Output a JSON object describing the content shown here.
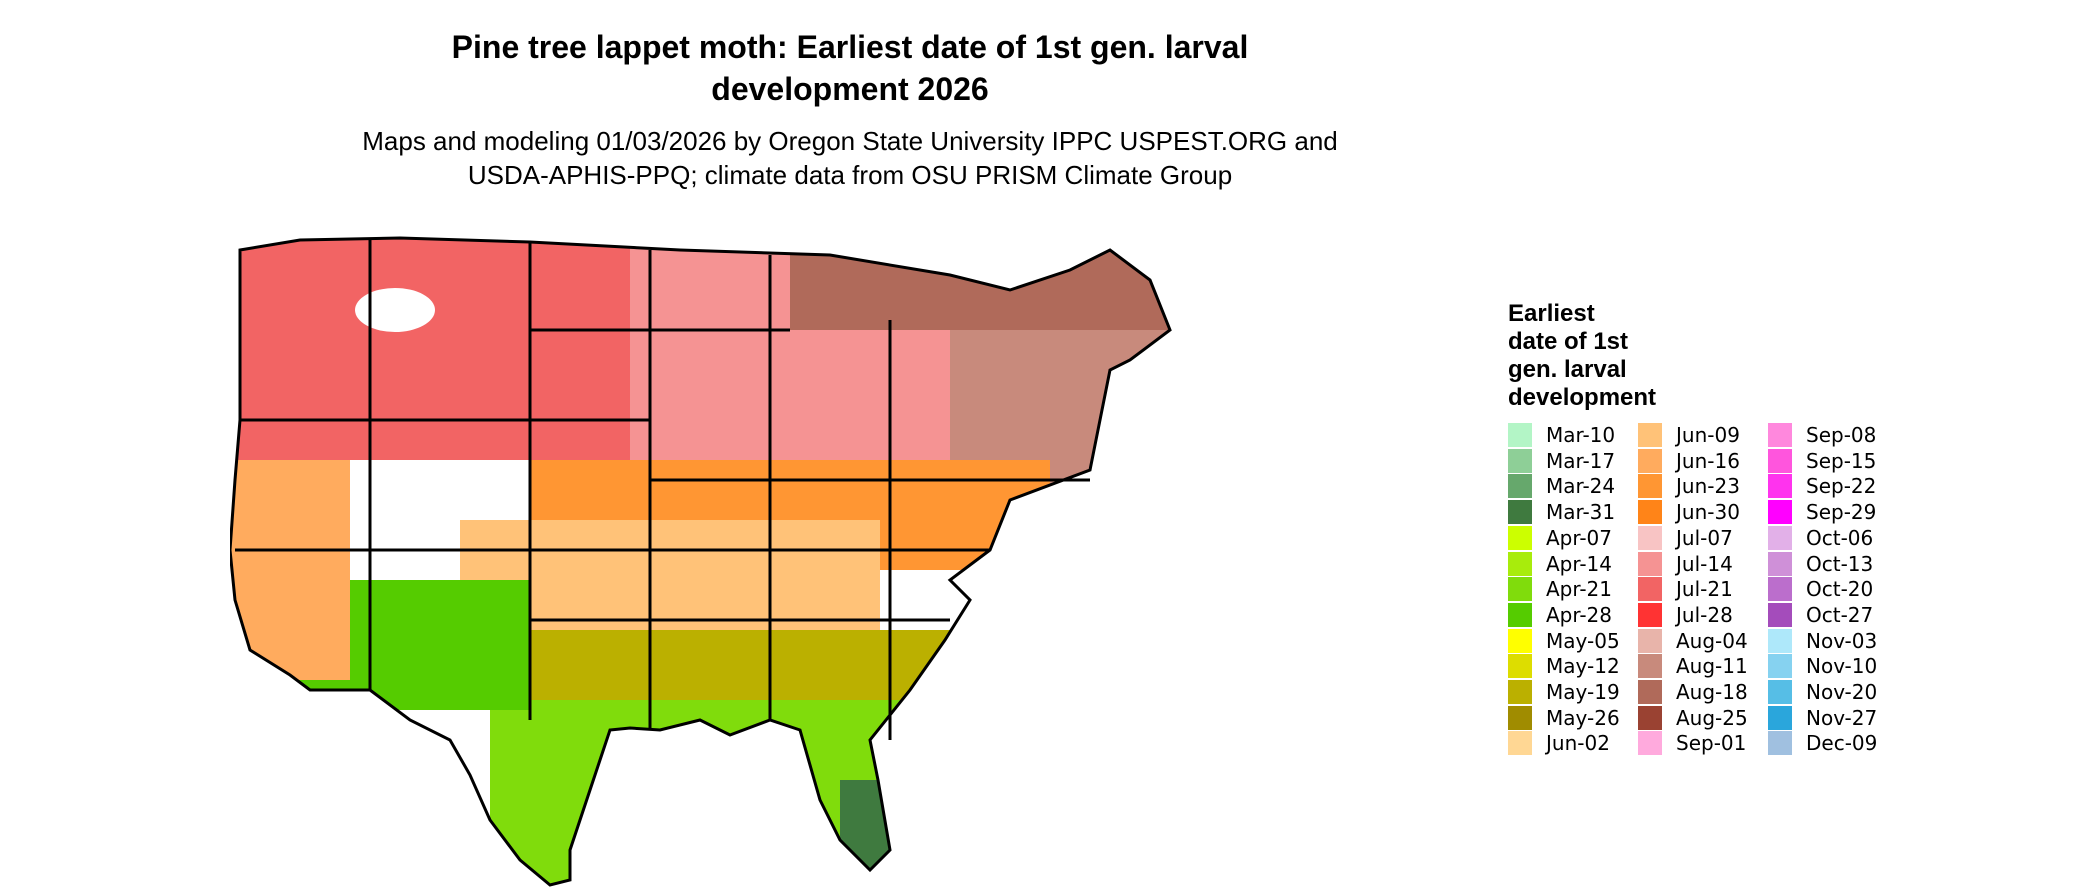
{
  "title": {
    "line1": "Pine tree lappet moth: Earliest date of 1st gen. larval",
    "line2": "development 2026"
  },
  "subtitle": {
    "line1": "Maps and modeling 01/03/2026 by Oregon State University IPPC USPEST.ORG and",
    "line2": "USDA-APHIS-PPQ; climate data from OSU PRISM Climate Group"
  },
  "legend": {
    "title_lines": [
      "Earliest",
      "date of 1st",
      "gen. larval",
      "development"
    ],
    "items": [
      {
        "label": "Mar-10",
        "color": "#b3f5c6"
      },
      {
        "label": "Mar-17",
        "color": "#8ecf97"
      },
      {
        "label": "Mar-24",
        "color": "#66a86c"
      },
      {
        "label": "Mar-31",
        "color": "#3f7a3f"
      },
      {
        "label": "Apr-07",
        "color": "#ccff00"
      },
      {
        "label": "Apr-14",
        "color": "#a8ec0c"
      },
      {
        "label": "Apr-21",
        "color": "#80dc0c"
      },
      {
        "label": "Apr-28",
        "color": "#55cc00"
      },
      {
        "label": "May-05",
        "color": "#ffff00"
      },
      {
        "label": "May-12",
        "color": "#dddd00"
      },
      {
        "label": "May-19",
        "color": "#bbb000"
      },
      {
        "label": "May-26",
        "color": "#a08c00"
      },
      {
        "label": "Jun-02",
        "color": "#ffd794"
      },
      {
        "label": "Jun-09",
        "color": "#ffc278"
      },
      {
        "label": "Jun-16",
        "color": "#ffab5e"
      },
      {
        "label": "Jun-23",
        "color": "#ff9633"
      },
      {
        "label": "Jun-30",
        "color": "#ff8418"
      },
      {
        "label": "Jul-07",
        "color": "#f8c4c4"
      },
      {
        "label": "Jul-14",
        "color": "#f59393"
      },
      {
        "label": "Jul-21",
        "color": "#f26464"
      },
      {
        "label": "Jul-28",
        "color": "#ff3333"
      },
      {
        "label": "Aug-04",
        "color": "#e8b4aa"
      },
      {
        "label": "Aug-11",
        "color": "#c88a7c"
      },
      {
        "label": "Aug-18",
        "color": "#b06a5a"
      },
      {
        "label": "Aug-25",
        "color": "#9a4232"
      },
      {
        "label": "Sep-01",
        "color": "#ffaadd"
      },
      {
        "label": "Sep-08",
        "color": "#ff88dd"
      },
      {
        "label": "Sep-15",
        "color": "#ff55dd"
      },
      {
        "label": "Sep-22",
        "color": "#ff33ee"
      },
      {
        "label": "Sep-29",
        "color": "#ff00ff"
      },
      {
        "label": "Oct-06",
        "color": "#e2b0e8"
      },
      {
        "label": "Oct-13",
        "color": "#cf90d8"
      },
      {
        "label": "Oct-20",
        "color": "#bb6ecc"
      },
      {
        "label": "Oct-27",
        "color": "#a44cbb"
      },
      {
        "label": "Nov-03",
        "color": "#aee8fa"
      },
      {
        "label": "Nov-10",
        "color": "#86d2f0"
      },
      {
        "label": "Nov-20",
        "color": "#56bee6"
      },
      {
        "label": "Nov-27",
        "color": "#2aa6dc"
      },
      {
        "label": "Dec-09",
        "color": "#a0c0e0"
      }
    ]
  },
  "map": {
    "regions": [
      {
        "id": "pacific-northwest",
        "color": "#f26464"
      },
      {
        "id": "northern-plains-upper-midwest",
        "color": "#f59393"
      },
      {
        "id": "great-lakes-northeast",
        "color": "#c88a7c"
      },
      {
        "id": "far-north",
        "color": "#b06a5a"
      },
      {
        "id": "central-band",
        "color": "#ff9633"
      },
      {
        "id": "southern-plains",
        "color": "#ffc278"
      },
      {
        "id": "deep-south",
        "color": "#bbb000"
      },
      {
        "id": "gulf-coast",
        "color": "#80dc0c"
      },
      {
        "id": "southwest-desert",
        "color": "#55cc00"
      },
      {
        "id": "south-florida",
        "color": "#3f7a3f"
      },
      {
        "id": "california-valley",
        "color": "#ffab5e"
      },
      {
        "id": "mountain-snow",
        "color": "#ffffff"
      }
    ]
  }
}
